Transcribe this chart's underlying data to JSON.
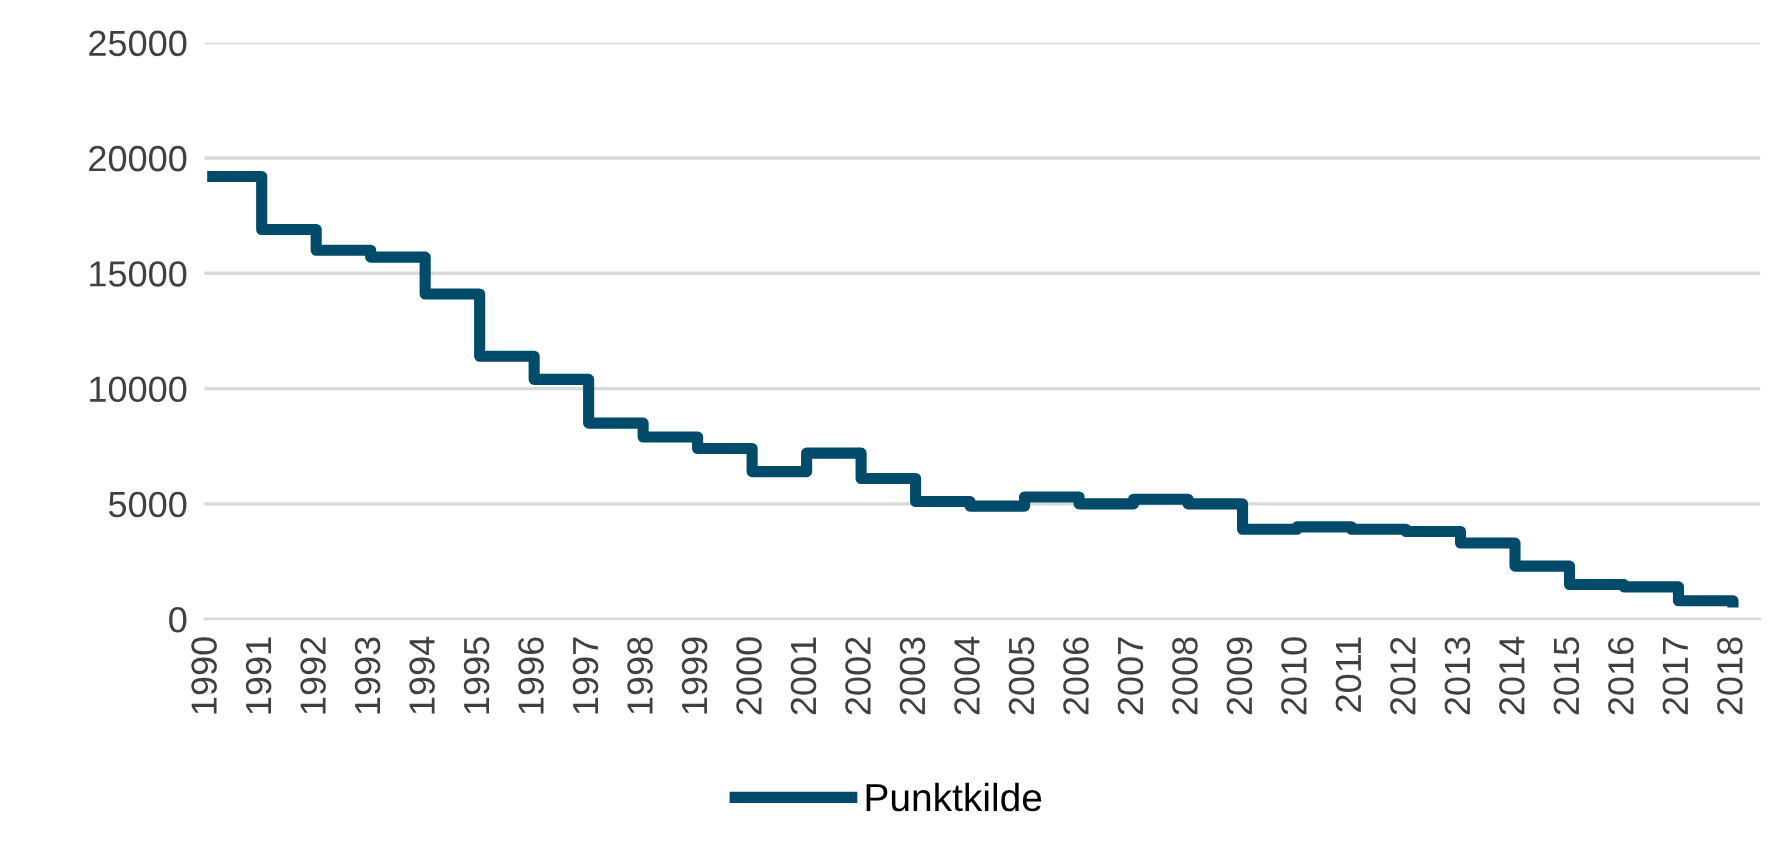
{
  "chart_data": {
    "type": "step",
    "categories": [
      "1990",
      "1991",
      "1992",
      "1993",
      "1994",
      "1995",
      "1996",
      "1997",
      "1998",
      "1999",
      "2000",
      "2001",
      "2002",
      "2003",
      "2004",
      "2005",
      "2006",
      "2007",
      "2008",
      "2009",
      "2010",
      "2011",
      "2012",
      "2013",
      "2014",
      "2015",
      "2016",
      "2017",
      "2018"
    ],
    "series": [
      {
        "name": "Punktkilde",
        "color": "#004a6a",
        "values": [
          19200,
          16900,
          16000,
          15700,
          14100,
          11400,
          10400,
          8500,
          7900,
          7400,
          6400,
          7200,
          6100,
          5100,
          4900,
          5300,
          5000,
          5200,
          5000,
          3900,
          4000,
          3900,
          3800,
          3300,
          2300,
          1500,
          1400,
          800,
          500
        ]
      }
    ],
    "ylim": [
      0,
      25000
    ],
    "yticks": [
      0,
      5000,
      10000,
      15000,
      20000,
      25000
    ],
    "grid": "y",
    "legend": "bottom",
    "marker": "none",
    "line_style": "solid"
  }
}
